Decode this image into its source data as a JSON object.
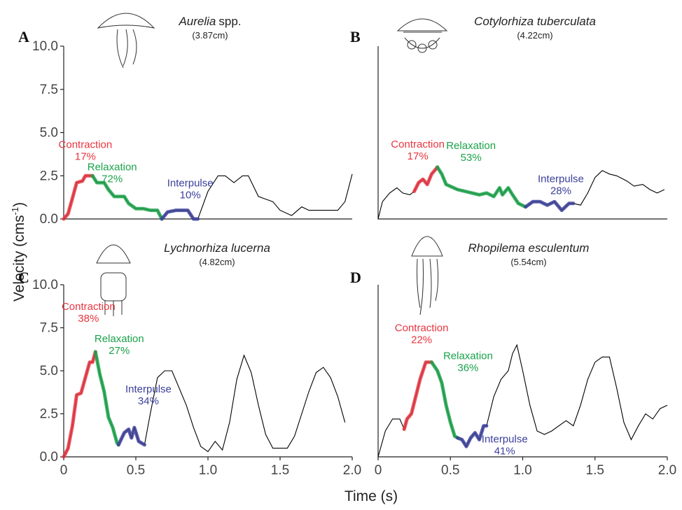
{
  "chart_data": [
    {
      "type": "line",
      "panel": "A",
      "title": "Aurelia",
      "title_suffix": "spp.",
      "subtitle": "(3.87cm)",
      "xlim": [
        0,
        2
      ],
      "ylim": [
        0,
        10
      ],
      "yticks": [
        {
          "value": 0,
          "label": "0.0"
        },
        2.5,
        {
          "value": 5,
          "label": "5.0"
        },
        7.5,
        {
          "value": 10,
          "label": "10.0"
        }
      ],
      "trace": {
        "color": "#000000",
        "x": [
          0,
          0.03,
          0.06,
          0.09,
          0.13,
          0.15,
          0.2,
          0.23,
          0.28,
          0.31,
          0.35,
          0.42,
          0.45,
          0.5,
          0.55,
          0.6,
          0.65,
          0.68,
          0.72,
          0.78,
          0.86,
          0.9,
          0.93,
          1.0,
          1.07,
          1.12,
          1.18,
          1.24,
          1.28,
          1.35,
          1.45,
          1.5,
          1.58,
          1.65,
          1.7,
          1.8,
          1.9,
          1.95,
          2.0
        ],
        "values": [
          0,
          0.3,
          1.2,
          2.1,
          2.2,
          2.5,
          2.5,
          2.1,
          2.1,
          1.7,
          1.3,
          1.3,
          0.9,
          0.6,
          0.6,
          0.5,
          0.5,
          0,
          0.4,
          0.5,
          0.5,
          0,
          0,
          1.6,
          2.5,
          2.5,
          2.1,
          2.5,
          2.5,
          1.3,
          1.0,
          0.5,
          0.2,
          0.7,
          0.5,
          0.5,
          0.5,
          1.0,
          2.6
        ]
      },
      "phases": [
        {
          "name": "Contraction",
          "percent": {
            "value": 17,
            "label": "17%"
          },
          "color": "#e8343f",
          "x": [
            0,
            0.03,
            0.06,
            0.09,
            0.13,
            0.15,
            0.2
          ],
          "values": [
            0,
            0.3,
            1.2,
            2.1,
            2.2,
            2.5,
            2.5
          ]
        },
        {
          "name": "Relaxation",
          "percent": {
            "value": 72,
            "label": "72%"
          },
          "color": "#1aa34a",
          "x": [
            0.2,
            0.23,
            0.28,
            0.31,
            0.35,
            0.42,
            0.45,
            0.5,
            0.55,
            0.6,
            0.65,
            0.68
          ],
          "values": [
            2.5,
            2.1,
            2.1,
            1.7,
            1.3,
            1.3,
            0.9,
            0.6,
            0.6,
            0.5,
            0.5,
            0
          ]
        },
        {
          "name": "Interpulse",
          "percent": {
            "value": 10,
            "label": "10%"
          },
          "color": "#3b3f9a",
          "x": [
            0.68,
            0.72,
            0.78,
            0.86,
            0.9,
            0.93
          ],
          "values": [
            0,
            0.4,
            0.5,
            0.5,
            0,
            0
          ]
        }
      ]
    },
    {
      "type": "line",
      "panel": "B",
      "title": "Cotylorhiza tuberculata",
      "subtitle": "(4.22cm)",
      "xlim": [
        0,
        2
      ],
      "ylim": [
        0,
        10
      ],
      "trace": {
        "color": "#000000",
        "x": [
          0,
          0.03,
          0.08,
          0.13,
          0.17,
          0.22,
          0.25,
          0.28,
          0.31,
          0.34,
          0.37,
          0.41,
          0.44,
          0.47,
          0.55,
          0.65,
          0.7,
          0.75,
          0.8,
          0.84,
          0.86,
          0.9,
          0.93,
          0.97,
          1.02,
          1.07,
          1.12,
          1.17,
          1.22,
          1.27,
          1.32,
          1.35,
          1.4,
          1.45,
          1.5,
          1.55,
          1.6,
          1.65,
          1.72,
          1.77,
          1.83,
          1.88,
          1.93,
          1.98
        ],
        "values": [
          0,
          1.0,
          1.5,
          1.8,
          1.5,
          1.4,
          1.6,
          2.1,
          2.3,
          2.0,
          2.6,
          3.0,
          2.6,
          2.0,
          1.7,
          1.5,
          1.4,
          1.5,
          1.3,
          1.8,
          1.4,
          1.8,
          1.4,
          0.9,
          0.7,
          1.0,
          1.0,
          0.8,
          1.0,
          0.5,
          0.9,
          0.9,
          0.8,
          1.5,
          2.4,
          2.8,
          2.6,
          2.5,
          2.2,
          1.9,
          2.0,
          1.7,
          1.5,
          1.7
        ]
      },
      "phases": [
        {
          "name": "Contraction",
          "percent": {
            "value": 17,
            "label": "17%"
          },
          "color": "#e8343f",
          "x": [
            0.25,
            0.28,
            0.31,
            0.34,
            0.37,
            0.41
          ],
          "values": [
            1.6,
            2.1,
            2.3,
            2.0,
            2.6,
            3.0
          ]
        },
        {
          "name": "Relaxation",
          "percent": {
            "value": 53,
            "label": "53%"
          },
          "color": "#1aa34a",
          "x": [
            0.41,
            0.44,
            0.47,
            0.55,
            0.65,
            0.7,
            0.75,
            0.8,
            0.84,
            0.86,
            0.9,
            0.93,
            0.97,
            1.02
          ],
          "values": [
            3.0,
            2.6,
            2.0,
            1.7,
            1.5,
            1.4,
            1.5,
            1.3,
            1.8,
            1.4,
            1.8,
            1.4,
            0.9,
            0.7
          ]
        },
        {
          "name": "Interpulse",
          "percent": {
            "value": 28,
            "label": "28%"
          },
          "color": "#3b3f9a",
          "x": [
            1.02,
            1.07,
            1.12,
            1.17,
            1.22,
            1.27,
            1.32,
            1.35
          ],
          "values": [
            0.7,
            1.0,
            1.0,
            0.8,
            1.0,
            0.5,
            0.9,
            0.9
          ]
        }
      ]
    },
    {
      "type": "line",
      "panel": "C",
      "title": "Lychnorhiza lucerna",
      "subtitle": "(4.82cm)",
      "xlim": [
        0,
        2
      ],
      "ylim": [
        0,
        10
      ],
      "yticks": [
        {
          "value": 0,
          "label": "0.0"
        },
        2.5,
        {
          "value": 5,
          "label": "5.0"
        },
        7.5,
        {
          "value": 10,
          "label": "10.0"
        }
      ],
      "xticks": [
        0,
        0.5,
        {
          "value": 1,
          "label": "1.0"
        },
        1.5,
        {
          "value": 2,
          "label": "2.0"
        }
      ],
      "trace": {
        "color": "#000000",
        "x": [
          0,
          0.03,
          0.06,
          0.09,
          0.12,
          0.15,
          0.18,
          0.2,
          0.22,
          0.25,
          0.28,
          0.31,
          0.34,
          0.37,
          0.38,
          0.42,
          0.45,
          0.47,
          0.49,
          0.52,
          0.56,
          0.6,
          0.65,
          0.7,
          0.75,
          0.8,
          0.85,
          0.9,
          0.95,
          1.0,
          1.05,
          1.1,
          1.15,
          1.2,
          1.25,
          1.3,
          1.35,
          1.4,
          1.45,
          1.5,
          1.55,
          1.6,
          1.65,
          1.7,
          1.75,
          1.8,
          1.85,
          1.9,
          1.95
        ],
        "values": [
          0,
          0.5,
          1.8,
          3.6,
          3.7,
          4.6,
          5.5,
          5.5,
          6.1,
          4.8,
          3.8,
          2.3,
          1.7,
          0.8,
          0.7,
          1.4,
          1.6,
          1.1,
          1.7,
          0.9,
          0.7,
          2.5,
          4.6,
          5.0,
          5.0,
          4.0,
          3.0,
          1.7,
          0.6,
          0.3,
          0.9,
          0.4,
          2.0,
          4.5,
          5.9,
          4.9,
          3.0,
          1.3,
          0.5,
          0.5,
          0.5,
          1.2,
          2.5,
          3.8,
          4.9,
          5.2,
          4.6,
          3.5,
          2.0
        ]
      },
      "phases": [
        {
          "name": "Contraction",
          "percent": {
            "value": 38,
            "label": "38%"
          },
          "color": "#e8343f",
          "x": [
            0,
            0.03,
            0.06,
            0.09,
            0.12,
            0.15,
            0.18,
            0.2,
            0.22
          ],
          "values": [
            0,
            0.5,
            1.8,
            3.6,
            3.7,
            4.6,
            5.5,
            5.5,
            6.1
          ]
        },
        {
          "name": "Relaxation",
          "percent": {
            "value": 27,
            "label": "27%"
          },
          "color": "#1aa34a",
          "x": [
            0.22,
            0.25,
            0.28,
            0.31,
            0.34,
            0.37,
            0.38
          ],
          "values": [
            6.1,
            4.8,
            3.8,
            2.3,
            1.7,
            0.8,
            0.7
          ]
        },
        {
          "name": "Interpulse",
          "percent": {
            "value": 34,
            "label": "34%"
          },
          "color": "#3b3f9a",
          "x": [
            0.38,
            0.42,
            0.45,
            0.47,
            0.49,
            0.52,
            0.56
          ],
          "values": [
            0.7,
            1.4,
            1.6,
            1.1,
            1.7,
            0.9,
            0.7
          ]
        }
      ]
    },
    {
      "type": "line",
      "panel": "D",
      "title": "Rhopilema esculentum",
      "subtitle": "(5.54cm)",
      "xlim": [
        0,
        2
      ],
      "ylim": [
        0,
        10
      ],
      "xticks": [
        0,
        0.5,
        {
          "value": 1,
          "label": "1.0"
        },
        1.5,
        {
          "value": 2,
          "label": "2.0"
        }
      ],
      "trace": {
        "color": "#000000",
        "x": [
          0,
          0.05,
          0.1,
          0.15,
          0.18,
          0.2,
          0.23,
          0.26,
          0.29,
          0.33,
          0.37,
          0.41,
          0.44,
          0.47,
          0.5,
          0.53,
          0.55,
          0.58,
          0.61,
          0.64,
          0.67,
          0.7,
          0.73,
          0.75,
          0.8,
          0.85,
          0.9,
          0.93,
          0.96,
          1.0,
          1.05,
          1.1,
          1.15,
          1.2,
          1.25,
          1.3,
          1.35,
          1.4,
          1.45,
          1.5,
          1.55,
          1.6,
          1.65,
          1.7,
          1.75,
          1.8,
          1.85,
          1.9,
          1.95,
          2.0
        ],
        "values": [
          0,
          1.5,
          2.2,
          2.2,
          1.6,
          2.2,
          2.5,
          3.5,
          4.5,
          5.5,
          5.5,
          5.0,
          4.3,
          3.0,
          2.0,
          1.2,
          1.1,
          1.0,
          0.6,
          1.1,
          1.4,
          1.0,
          1.8,
          1.8,
          3.5,
          4.5,
          5.0,
          6.0,
          6.5,
          5.0,
          3.0,
          1.5,
          1.3,
          1.5,
          1.8,
          2.1,
          1.8,
          3.0,
          4.5,
          5.5,
          5.8,
          5.8,
          4.0,
          2.0,
          1.0,
          1.8,
          2.5,
          2.2,
          2.8,
          3.0
        ]
      },
      "phases": [
        {
          "name": "Contraction",
          "percent": {
            "value": 22,
            "label": "22%"
          },
          "color": "#e8343f",
          "x": [
            0.18,
            0.2,
            0.23,
            0.26,
            0.29,
            0.33,
            0.37
          ],
          "values": [
            1.6,
            2.2,
            2.5,
            3.5,
            4.5,
            5.5,
            5.5
          ]
        },
        {
          "name": "Relaxation",
          "percent": {
            "value": 36,
            "label": "36%"
          },
          "color": "#1aa34a",
          "x": [
            0.37,
            0.41,
            0.44,
            0.47,
            0.5,
            0.53,
            0.55
          ],
          "values": [
            5.5,
            5.0,
            4.3,
            3.0,
            2.0,
            1.2,
            1.1
          ]
        },
        {
          "name": "Interpulse",
          "percent": {
            "value": 41,
            "label": "41%"
          },
          "color": "#3b3f9a",
          "x": [
            0.55,
            0.58,
            0.61,
            0.64,
            0.67,
            0.7,
            0.73,
            0.75
          ],
          "values": [
            1.1,
            1.0,
            0.6,
            1.1,
            1.4,
            1.0,
            1.8,
            1.8
          ]
        }
      ]
    }
  ],
  "y_label": {
    "text": "Velocity (cms",
    "superscript": "-1",
    "suffix": ")"
  },
  "x_label": "Time (s)"
}
